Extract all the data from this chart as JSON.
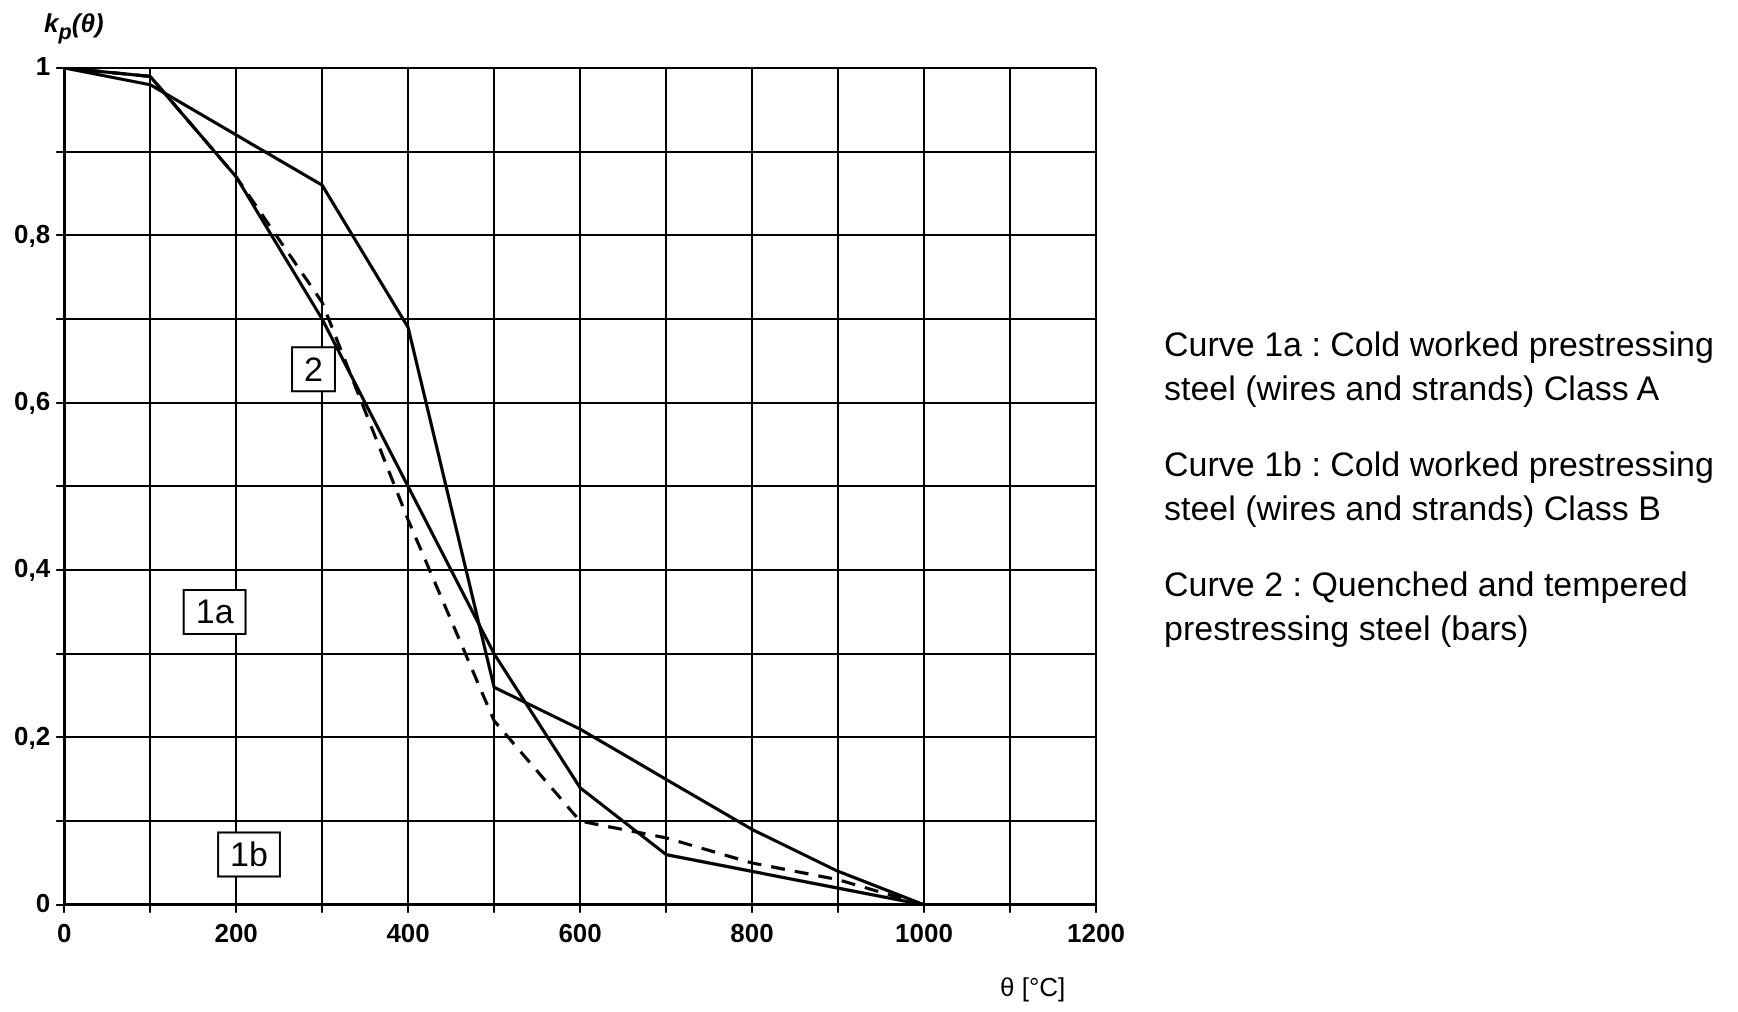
{
  "chart_data": {
    "type": "line",
    "xlabel": "θ [°C]",
    "ylabel": "k$_{p}$(θ)",
    "x": [
      0,
      100,
      200,
      300,
      400,
      500,
      600,
      700,
      800,
      900,
      1000,
      1100,
      1200
    ],
    "series": [
      {
        "color": "#000000",
        "line_style": "dashed",
        "values": [
          1,
          0.99,
          0.87,
          0.72,
          0.46,
          0.22,
          0.1,
          0.08,
          0.05,
          0.03,
          0,
          0,
          0
        ]
      },
      {
        "color": "#000000",
        "line_style": "solid",
        "values": [
          1,
          0.99,
          0.87,
          0.7,
          0.5,
          0.3,
          0.14,
          0.06,
          0.04,
          0.02,
          0,
          0,
          0
        ]
      },
      {
        "color": "#000000",
        "line_style": "solid",
        "values": [
          1,
          0.98,
          0.92,
          0.86,
          0.69,
          0.26,
          0.21,
          0.15,
          0.09,
          0.04,
          0,
          0,
          0
        ]
      }
    ],
    "xlim": [
      0,
      1200
    ],
    "xticks": [
      0,
      {
        "value": 100,
        "label": null
      },
      200,
      {
        "value": 300,
        "label": null
      },
      400,
      {
        "value": 500,
        "label": null
      },
      600,
      {
        "value": 700,
        "label": null
      },
      800,
      {
        "value": 900,
        "label": null
      },
      1000,
      {
        "value": 1100,
        "label": null
      },
      1200
    ],
    "ylim": [
      0,
      1
    ],
    "yticks": [
      {
        "value": 0,
        "label": "0"
      },
      {
        "value": 0.1,
        "label": null
      },
      {
        "value": 0.2,
        "label": "0,2"
      },
      {
        "value": 0.3,
        "label": null
      },
      {
        "value": 0.4,
        "label": "0,4"
      },
      {
        "value": 0.5,
        "label": null
      },
      {
        "value": 0.6,
        "label": "0,6"
      },
      {
        "value": 0.7,
        "label": null
      },
      {
        "value": 0.8,
        "label": "0,8"
      },
      {
        "value": 0.9,
        "label": null
      },
      {
        "value": 1,
        "label": "1"
      }
    ],
    "grid": true,
    "legend": false,
    "marker": "none",
    "annotations": [
      {
        "text": "2",
        "x": 290,
        "y": 0.64
      },
      {
        "text": "1a",
        "x": 175,
        "y": 0.35
      },
      {
        "text": "1b",
        "x": 215,
        "y": 0.06
      },
      "Curve 1a : Cold worked prestressing steel (wires and strands) Class A",
      "Curve 1b : Cold worked prestressing steel (wires and strands) Class B",
      "Curve 2 : Quenched and tempered prestressing steel (bars)"
    ]
  }
}
